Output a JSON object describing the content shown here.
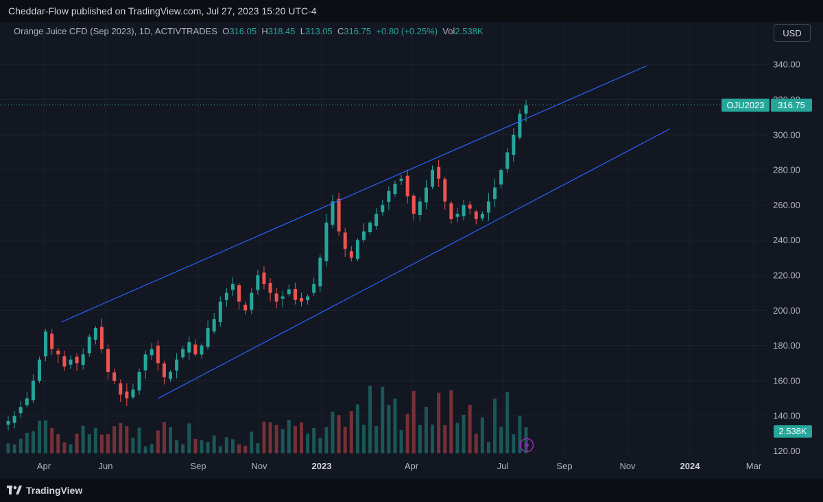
{
  "header": {
    "publisher_line": "Cheddar-Flow published on TradingView.com, Jul 27, 2023 15:20 UTC-4"
  },
  "legend": {
    "instrument": "Orange Juice CFD (Sep 2023), 1D, ACTIVTRADES",
    "o_label": "O",
    "o_value": "316.05",
    "h_label": "H",
    "h_value": "318.45",
    "l_label": "L",
    "l_value": "313.05",
    "c_label": "C",
    "c_value": "316.75",
    "change": "+0.80 (+0.25%)",
    "vol_label": "Vol",
    "vol_value": "2.538K"
  },
  "currency_button": "USD",
  "price_tag": {
    "symbol": "OJU2023",
    "price": "316.75"
  },
  "volume_tag": "2.538K",
  "footer": {
    "brand": "TradingView"
  },
  "colors": {
    "background": "#131722",
    "up": "#26a69a",
    "down": "#ef5350",
    "channel": "#2962ff",
    "text": "#b2b5be",
    "grid": "#1e222d"
  },
  "chart_data": {
    "type": "candlestick",
    "title": "Orange Juice CFD (Sep 2023), 1D, ACTIVTRADES",
    "y_axis": {
      "ticks": [
        "120.00",
        "140.00",
        "160.00",
        "180.00",
        "200.00",
        "220.00",
        "240.00",
        "260.00",
        "280.00",
        "300.00",
        "320.00",
        "340.00"
      ],
      "range": [
        116,
        346
      ]
    },
    "x_axis": {
      "ticks": [
        "Apr",
        "Jun",
        "Sep",
        "Nov",
        "2023",
        "Apr",
        "Jul",
        "Sep",
        "Nov",
        "2024",
        "Mar"
      ],
      "bold": [
        "2023",
        "2024"
      ]
    },
    "last_price": 316.75,
    "last_volume": "2.538K",
    "series": [
      {
        "name": "price",
        "approx_closes": [
          137,
          140,
          145,
          150,
          160,
          172,
          188,
          178,
          175,
          168,
          172,
          170,
          175,
          185,
          190,
          178,
          165,
          160,
          152,
          150,
          155,
          165,
          175,
          178,
          170,
          162,
          165,
          172,
          178,
          182,
          175,
          180,
          190,
          195,
          205,
          210,
          215,
          205,
          200,
          210,
          220,
          215,
          210,
          205,
          208,
          212,
          206,
          205,
          208,
          215,
          230,
          250,
          262,
          245,
          235,
          230,
          240,
          245,
          250,
          255,
          260,
          268,
          272,
          275,
          265,
          255,
          262,
          270,
          280,
          275,
          262,
          252,
          255,
          260,
          258,
          252,
          255,
          262,
          270,
          280,
          290,
          300,
          312,
          316.75
        ]
      }
    ],
    "channel_lines": [
      {
        "from": {
          "date": "2022-03-28",
          "price": 193
        },
        "to": {
          "date": "2023-11-02",
          "price": 339
        }
      },
      {
        "from": {
          "date": "2022-07-19",
          "price": 149
        },
        "to": {
          "date": "2023-11-21",
          "price": 302
        }
      }
    ]
  }
}
